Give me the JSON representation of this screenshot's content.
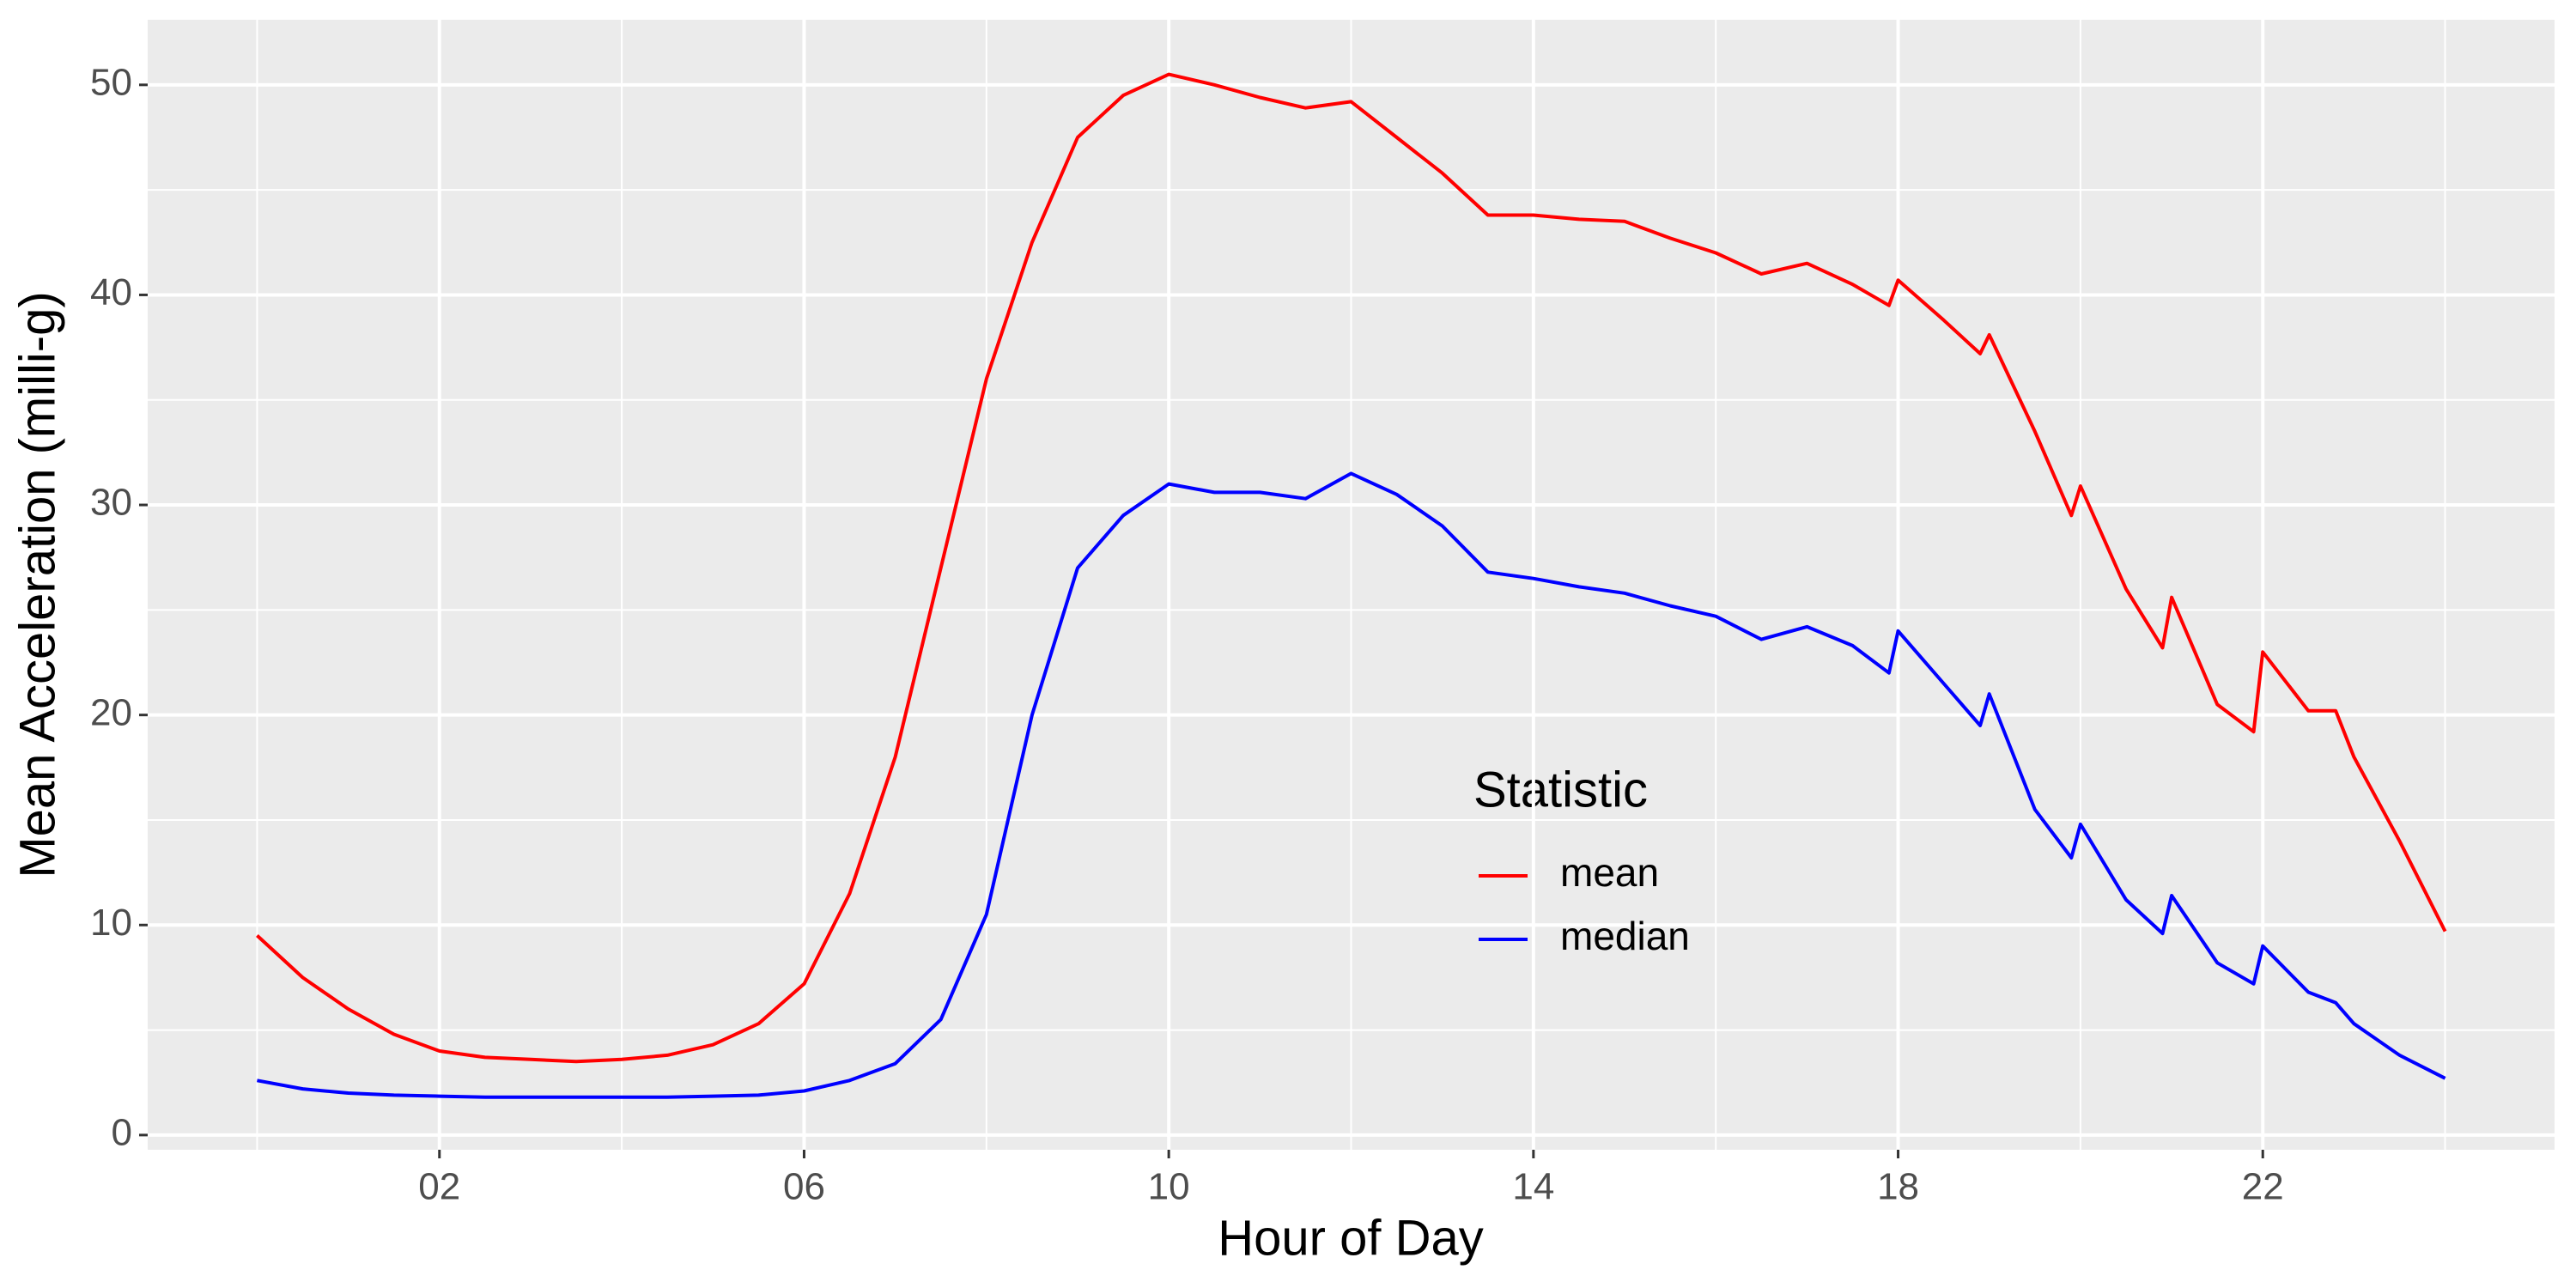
{
  "chart_data": {
    "type": "line",
    "xlabel": "Hour of Day",
    "ylabel": "Mean Acceleration (milli-g)",
    "legend_title": "Statistic",
    "x": [
      0,
      0.5,
      1,
      1.5,
      2,
      2.5,
      3,
      3.5,
      4,
      4.5,
      5,
      5.5,
      6,
      6.5,
      7,
      7.5,
      8,
      8.5,
      9,
      9.5,
      10,
      10.5,
      11,
      11.5,
      12,
      12.5,
      13,
      13.5,
      14,
      14.5,
      15,
      15.5,
      16,
      16.5,
      17,
      17.5,
      17.9,
      18,
      18.5,
      18.9,
      19,
      19.5,
      19.9,
      20,
      20.5,
      20.9,
      21,
      21.5,
      21.9,
      22,
      22.5,
      22.8,
      23,
      23.5,
      24
    ],
    "series": [
      {
        "name": "mean",
        "color": "#ff0000",
        "values": [
          9.5,
          7.5,
          6.0,
          4.8,
          4.0,
          3.7,
          3.6,
          3.5,
          3.6,
          3.8,
          4.3,
          5.3,
          7.2,
          11.5,
          18,
          27,
          36,
          42.5,
          47.5,
          49.5,
          50.5,
          50.0,
          49.4,
          48.9,
          49.2,
          47.5,
          45.8,
          43.8,
          43.8,
          43.6,
          43.5,
          42.7,
          42.0,
          41.0,
          41.5,
          40.5,
          39.5,
          40.7,
          38.8,
          37.2,
          38.1,
          33.5,
          29.5,
          30.9,
          26,
          23.2,
          25.6,
          20.5,
          19.2,
          23.0,
          20.2,
          20.2,
          18,
          14,
          9.7
        ]
      },
      {
        "name": "median",
        "color": "#0000ff",
        "values": [
          2.6,
          2.2,
          2.0,
          1.9,
          1.85,
          1.8,
          1.8,
          1.8,
          1.8,
          1.8,
          1.85,
          1.9,
          2.1,
          2.6,
          3.4,
          5.5,
          10.5,
          20,
          27,
          29.5,
          31,
          30.6,
          30.6,
          30.3,
          31.5,
          30.5,
          29,
          26.8,
          26.5,
          26.1,
          25.8,
          25.2,
          24.7,
          23.6,
          24.2,
          23.3,
          22,
          24,
          21.5,
          19.5,
          21,
          15.5,
          13.2,
          14.8,
          11.2,
          9.6,
          11.4,
          8.2,
          7.2,
          9,
          6.8,
          6.3,
          5.3,
          3.8,
          2.7
        ]
      }
    ],
    "xlim": [
      -1.2,
      25.2
    ],
    "xticks": [
      {
        "value": 2,
        "label": "02"
      },
      {
        "value": 6,
        "label": "06"
      },
      {
        "value": 10,
        "label": "10"
      },
      {
        "value": 14,
        "label": "14"
      },
      {
        "value": 18,
        "label": "18"
      },
      {
        "value": 22,
        "label": "22"
      }
    ],
    "x_minor_ticks": [
      0,
      4,
      8,
      12,
      16,
      20,
      24
    ],
    "ylim": [
      -0.7,
      53.1
    ],
    "yticks": [
      0,
      10,
      20,
      30,
      40,
      50
    ],
    "y_minor_ticks": [
      5,
      15,
      25,
      35,
      45
    ],
    "grid": true
  }
}
